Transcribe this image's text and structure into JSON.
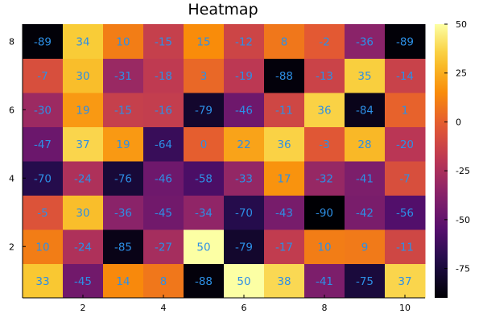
{
  "chart_data": {
    "type": "heatmap",
    "title": "Heatmap",
    "xlabel": "",
    "ylabel": "",
    "x": [
      1,
      2,
      3,
      4,
      5,
      6,
      7,
      8,
      9,
      10
    ],
    "y": [
      1,
      2,
      3,
      4,
      5,
      6,
      7,
      8
    ],
    "x_ticks": [
      2,
      4,
      6,
      8,
      10
    ],
    "y_ticks": [
      2,
      4,
      6,
      8
    ],
    "z": [
      [
        33,
        -45,
        14,
        8,
        -88,
        50,
        38,
        -41,
        -75,
        37
      ],
      [
        10,
        -24,
        -85,
        -27,
        50,
        -79,
        -17,
        10,
        9,
        -11
      ],
      [
        -5,
        30,
        -36,
        -45,
        -34,
        -70,
        -43,
        -90,
        -42,
        -56
      ],
      [
        -70,
        -24,
        -76,
        -46,
        -58,
        -33,
        17,
        -32,
        -41,
        -7
      ],
      [
        -47,
        37,
        19,
        -64,
        0,
        22,
        36,
        -3,
        28,
        -20
      ],
      [
        -30,
        19,
        -15,
        -16,
        -79,
        -46,
        -11,
        36,
        -84,
        1
      ],
      [
        -7,
        30,
        -31,
        -18,
        3,
        -19,
        -88,
        -13,
        35,
        -14
      ],
      [
        -89,
        34,
        10,
        -15,
        15,
        -12,
        8,
        -2,
        -36,
        -89
      ]
    ],
    "colorbar": {
      "range": [
        -90,
        50
      ],
      "ticks": [
        50,
        25,
        0,
        -25,
        -50,
        -75
      ],
      "colormap": "inferno"
    },
    "annotation_color": "#2d8fe6",
    "grid": false,
    "legend": "none"
  }
}
